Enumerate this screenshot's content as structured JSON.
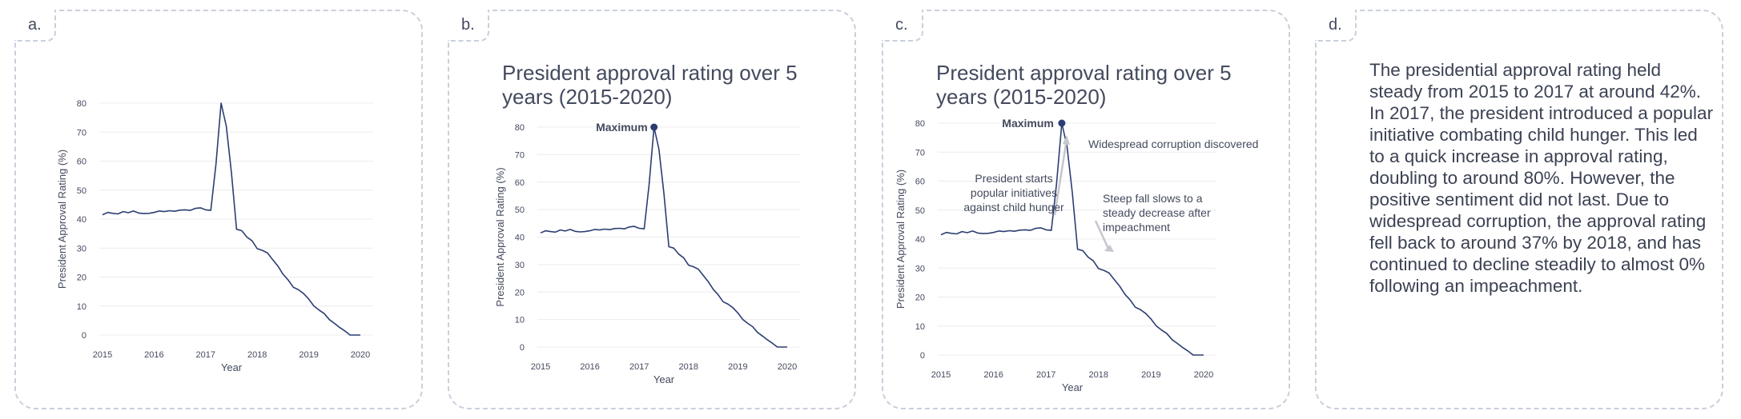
{
  "panels": [
    {
      "label": "a."
    },
    {
      "label": "b.",
      "title": "President approval rating over 5 years (2015-2020)",
      "max_label": "Maximum"
    },
    {
      "label": "c.",
      "title": "President approval rating over 5 years (2015-2020)",
      "max_label": "Maximum",
      "annotations": {
        "rise": [
          "President starts",
          "popular initiatives",
          "against child hunger"
        ],
        "peak": "Widespread corruption discovered",
        "fall": [
          "Steep fall slows to a",
          "steady decrease after",
          "impeachment"
        ]
      }
    },
    {
      "label": "d.",
      "text": "The presidential approval rating held steady from 2015 to 2017 at around 42%. In 2017, the president introduced a popular initiative combating child hunger. This led to a quick increase in approval rating, doubling to around 80%. However, the positive sentiment did not last. Due to widespread corruption, the approval rating fell back to around 37% by 2018, and has continued to decline steadily to almost 0% following an impeachment."
    }
  ],
  "colors": {
    "line": "#2b3e72",
    "border": "#c9cfdc",
    "grid": "#ececf0",
    "annotation_arrow": "#c4c7cc"
  },
  "chart_data": {
    "type": "line",
    "title": "President approval rating over 5 years (2015-2020)",
    "xlabel": "Year",
    "ylabel": "President Approval Rating (%)",
    "xlim": [
      2015,
      2020
    ],
    "ylim": [
      0,
      80
    ],
    "x_ticks": [
      "2015",
      "2016",
      "2017",
      "2018",
      "2019",
      "2020"
    ],
    "y_ticks": [
      "0",
      "10",
      "20",
      "30",
      "40",
      "50",
      "60",
      "70",
      "80"
    ],
    "grid": true,
    "x": [
      2015.0,
      2015.1,
      2015.2,
      2015.3,
      2015.4,
      2015.5,
      2015.6,
      2015.7,
      2015.8,
      2015.9,
      2016.0,
      2016.1,
      2016.2,
      2016.3,
      2016.4,
      2016.5,
      2016.6,
      2016.7,
      2016.8,
      2016.9,
      2017.0,
      2017.1,
      2017.2,
      2017.3,
      2017.4,
      2017.5,
      2017.6,
      2017.7,
      2017.8,
      2017.9,
      2018.0,
      2018.1,
      2018.2,
      2018.3,
      2018.4,
      2018.5,
      2018.6,
      2018.7,
      2018.8,
      2018.9,
      2019.0,
      2019.1,
      2019.2,
      2019.3,
      2019.4,
      2019.5,
      2019.6,
      2019.7,
      2019.8,
      2019.9,
      2020.0
    ],
    "y": [
      41.5,
      42.3,
      42.0,
      41.8,
      42.6,
      42.2,
      42.8,
      42.1,
      41.9,
      42.0,
      42.3,
      42.8,
      42.6,
      42.9,
      42.7,
      43.1,
      43.2,
      43.0,
      43.7,
      43.9,
      43.2,
      43.0,
      59.0,
      80.0,
      72.0,
      56.0,
      36.5,
      36.0,
      33.8,
      32.5,
      29.8,
      29.2,
      28.3,
      26.0,
      23.8,
      21.0,
      19.0,
      16.5,
      15.6,
      14.3,
      12.4,
      10.0,
      8.6,
      7.4,
      5.3,
      4.0,
      2.6,
      1.4,
      0.0,
      0.0,
      0.0
    ],
    "maximum": {
      "x": 2017.3,
      "y": 80
    }
  }
}
